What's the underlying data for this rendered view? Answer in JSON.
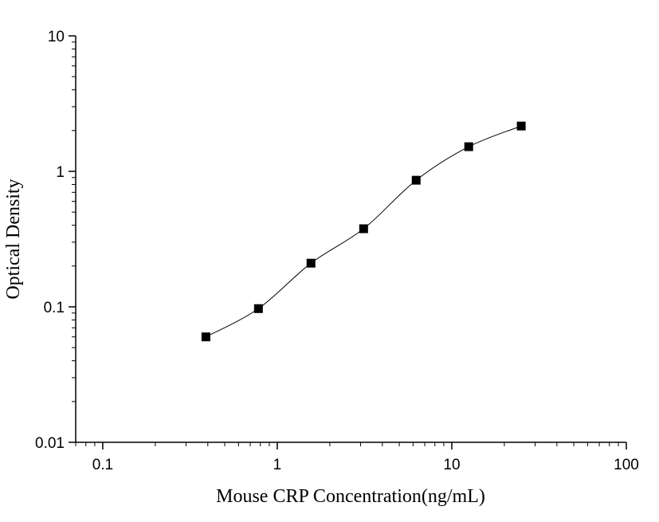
{
  "chart_data": {
    "type": "scatter",
    "x_label": "Mouse CRP Concentration(ng/mL)",
    "y_label": "Optical Density",
    "x_log": true,
    "y_log": true,
    "x": [
      0.39,
      0.78,
      1.56,
      3.125,
      6.25,
      12.5,
      25
    ],
    "series": [
      {
        "color": "#000000",
        "values": [
          0.06,
          0.097,
          0.21,
          0.377,
          0.86,
          1.52,
          2.16
        ]
      }
    ],
    "xlim": [
      0.07,
      100
    ],
    "xticks": [
      0.1,
      1,
      10,
      100
    ],
    "ylim": [
      0.01,
      10
    ],
    "yticks": [
      0.01,
      0.1,
      1,
      10
    ]
  }
}
